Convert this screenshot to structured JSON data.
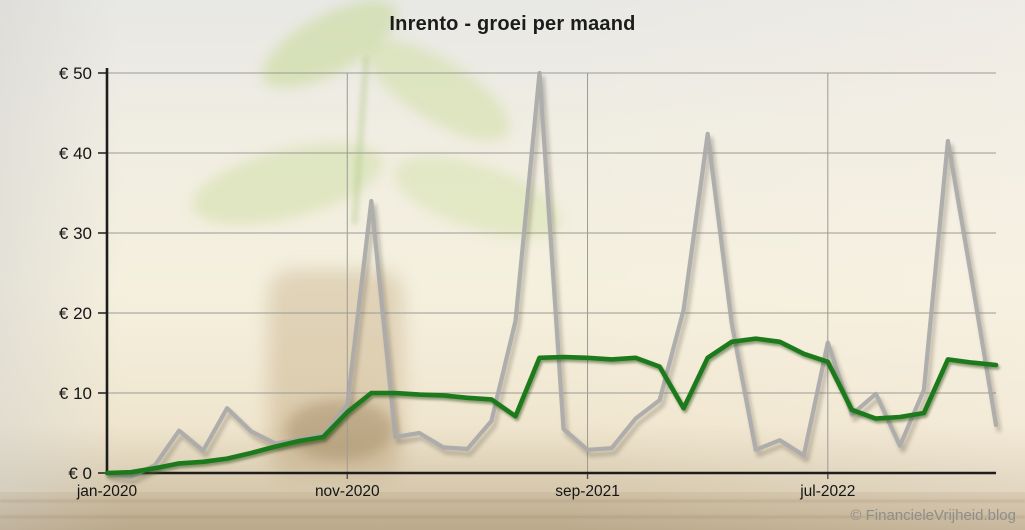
{
  "title": "Inrento - groei per maand",
  "watermark": "© FinancieleVrijheid.blog",
  "colors": {
    "gray_line": "#a9a9a9",
    "green_line": "#1b7a1b",
    "grid": "#9b9b94",
    "axis": "#1d1d1d",
    "label_text": "#151515",
    "title_text": "#1c1c1c",
    "watermark_text": "#8e8e8a"
  },
  "chart_data": {
    "type": "line",
    "title": "Inrento - groei per maand",
    "xlabel": "",
    "ylabel": "",
    "ylim": [
      0,
      50
    ],
    "grid": "on",
    "legend_position": "none",
    "currency": "EUR",
    "months": [
      "jan-2020",
      "feb-2020",
      "mrt-2020",
      "apr-2020",
      "mei-2020",
      "jun-2020",
      "jul-2020",
      "aug-2020",
      "sep-2020",
      "okt-2020",
      "nov-2020",
      "dec-2020",
      "jan-2021",
      "feb-2021",
      "mrt-2021",
      "apr-2021",
      "mei-2021",
      "jun-2021",
      "jul-2021",
      "aug-2021",
      "sep-2021",
      "okt-2021",
      "nov-2021",
      "dec-2021",
      "jan-2022",
      "feb-2022",
      "mrt-2022",
      "apr-2022",
      "mei-2022",
      "jun-2022",
      "jul-2022",
      "aug-2022",
      "sep-2022",
      "okt-2022",
      "nov-2022",
      "dec-2022",
      "jan-2023",
      "feb-2023"
    ],
    "x_tick_labels": [
      {
        "index": 0,
        "label": "jan-2020"
      },
      {
        "index": 10,
        "label": "nov-2020"
      },
      {
        "index": 20,
        "label": "sep-2021"
      },
      {
        "index": 30,
        "label": "jul-2022"
      }
    ],
    "y_tick_labels": [
      {
        "value": 0,
        "label": "€ 0"
      },
      {
        "value": 10,
        "label": "€ 10"
      },
      {
        "value": 20,
        "label": "€ 20"
      },
      {
        "value": 30,
        "label": "€ 30"
      },
      {
        "value": 40,
        "label": "€ 40"
      },
      {
        "value": 50,
        "label": "€ 50"
      }
    ],
    "vertical_grid_indices": [
      10,
      20,
      30
    ],
    "series": [
      {
        "name": "gray",
        "color": "#a9a9a9",
        "values": [
          0,
          -0.5,
          1.0,
          5.3,
          2.8,
          8.1,
          5.2,
          3.7,
          4.2,
          4.8,
          8.5,
          34.0,
          4.5,
          5.0,
          3.2,
          3.0,
          6.5,
          19.0,
          50.0,
          5.5,
          2.9,
          3.1,
          6.8,
          9.1,
          20.4,
          42.4,
          18.7,
          2.9,
          4.1,
          2.2,
          16.3,
          7.3,
          9.9,
          3.4,
          10.4,
          41.5,
          24.0,
          6.0
        ]
      },
      {
        "name": "green",
        "color": "#1b7a1b",
        "values": [
          0,
          0.1,
          0.6,
          1.2,
          1.4,
          1.8,
          2.5,
          3.3,
          4.0,
          4.5,
          7.6,
          10.0,
          10.0,
          9.8,
          9.7,
          9.4,
          9.2,
          7.1,
          14.4,
          14.5,
          14.4,
          14.2,
          14.4,
          13.3,
          8.1,
          14.4,
          16.4,
          16.8,
          16.4,
          14.9,
          13.9,
          7.9,
          6.8,
          7.0,
          7.5,
          14.2,
          13.8,
          13.5
        ]
      }
    ]
  }
}
